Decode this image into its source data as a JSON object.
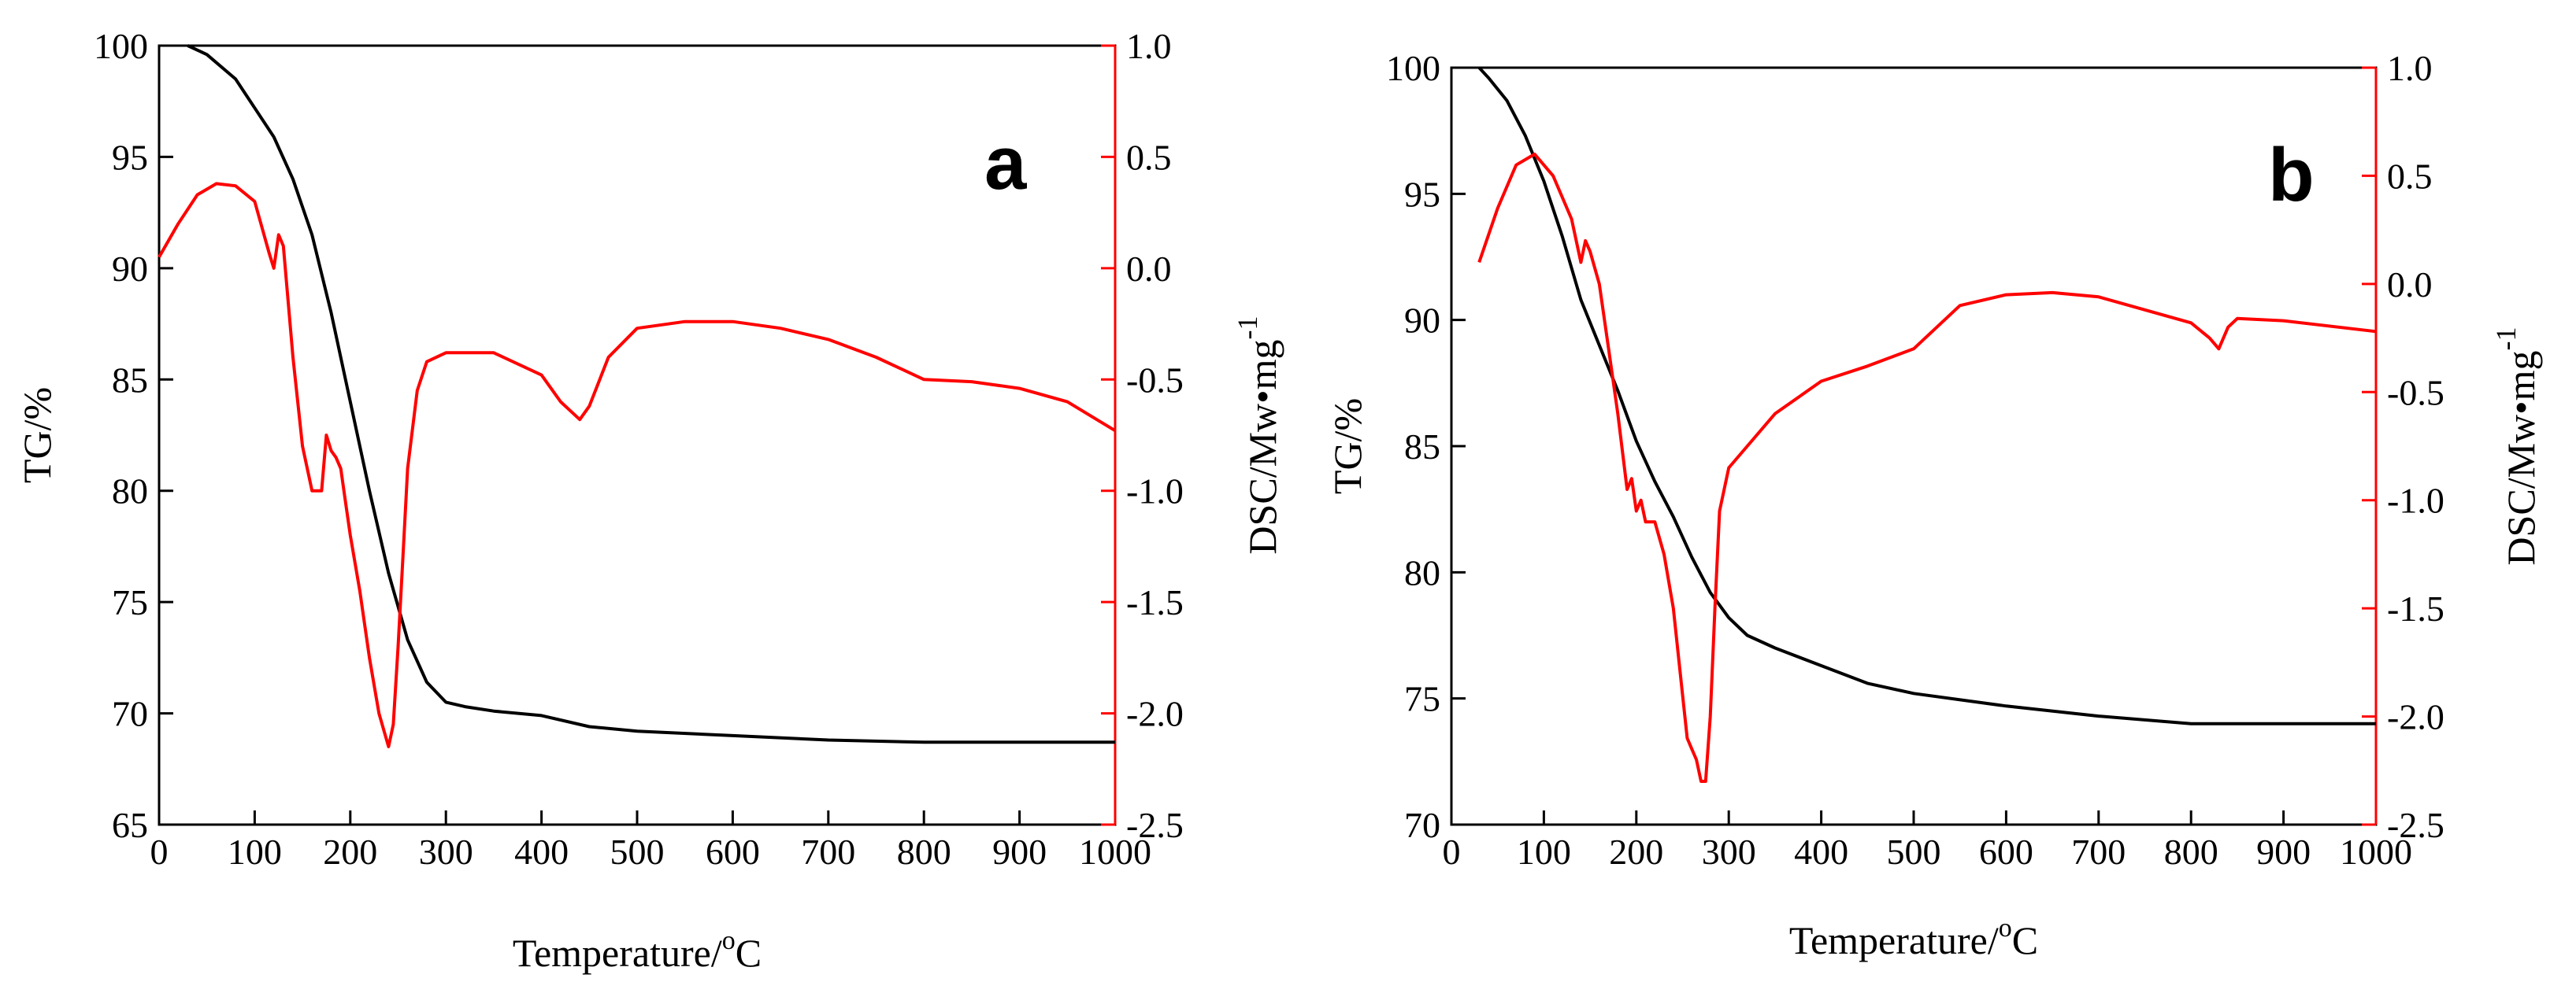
{
  "colors": {
    "tg": "#000000",
    "dsc": "#ff0000",
    "axis_left": "#000000",
    "axis_right": "#ff0000"
  },
  "chart_data": [
    {
      "type": "line",
      "panel": "a",
      "xlabel": "Temperature/",
      "xlabel_unit_sup": "o",
      "xlabel_unit": "C",
      "ylabel": "TG/%",
      "y2label": "DSC/Mw•mg",
      "y2label_sup": "-1",
      "xlim": [
        0,
        1000
      ],
      "ylim": [
        65,
        100
      ],
      "y2lim": [
        -2.5,
        1.0
      ],
      "xticks": [
        "0",
        "100",
        "200",
        "300",
        "400",
        "500",
        "600",
        "700",
        "800",
        "900",
        "1000"
      ],
      "yticks": [
        "65",
        "70",
        "75",
        "80",
        "85",
        "90",
        "95",
        "100"
      ],
      "y2ticks": [
        "-2.5",
        "-2.0",
        "-1.5",
        "-1.0",
        "-0.5",
        "0.0",
        "0.5",
        "1.0"
      ],
      "series": [
        {
          "name": "TG",
          "axis": "left",
          "x": [
            30,
            50,
            80,
            100,
            120,
            140,
            160,
            180,
            200,
            220,
            240,
            260,
            280,
            300,
            320,
            350,
            400,
            450,
            500,
            600,
            700,
            800,
            1000
          ],
          "values": [
            100,
            99.6,
            98.5,
            97.2,
            95.9,
            94,
            91.5,
            88,
            84,
            80,
            76.3,
            73.3,
            71.4,
            70.5,
            70.3,
            70.1,
            69.9,
            69.4,
            69.2,
            69.0,
            68.8,
            68.7,
            68.7
          ]
        },
        {
          "name": "DSC",
          "axis": "right",
          "x": [
            0,
            20,
            40,
            60,
            80,
            100,
            115,
            120,
            125,
            130,
            135,
            140,
            150,
            160,
            170,
            175,
            180,
            185,
            190,
            195,
            200,
            210,
            220,
            230,
            240,
            245,
            250,
            255,
            260,
            270,
            280,
            300,
            350,
            400,
            420,
            440,
            450,
            470,
            500,
            550,
            600,
            650,
            700,
            750,
            800,
            850,
            900,
            950,
            1000
          ],
          "values": [
            0.05,
            0.2,
            0.33,
            0.38,
            0.37,
            0.3,
            0.07,
            0.0,
            0.15,
            0.1,
            -0.15,
            -0.4,
            -0.8,
            -1.0,
            -1.0,
            -0.75,
            -0.82,
            -0.85,
            -0.9,
            -1.05,
            -1.2,
            -1.45,
            -1.75,
            -2.0,
            -2.15,
            -2.05,
            -1.7,
            -1.3,
            -0.9,
            -0.55,
            -0.42,
            -0.38,
            -0.38,
            -0.48,
            -0.6,
            -0.68,
            -0.62,
            -0.4,
            -0.27,
            -0.24,
            -0.24,
            -0.27,
            -0.32,
            -0.4,
            -0.5,
            -0.51,
            -0.54,
            -0.6,
            -0.73
          ]
        }
      ],
      "legend": "none"
    },
    {
      "type": "line",
      "panel": "b",
      "xlabel": "Temperature/",
      "xlabel_unit_sup": "o",
      "xlabel_unit": "C",
      "ylabel": "TG/%",
      "y2label": "DSC/Mw•mg",
      "y2label_sup": "-1",
      "xlim": [
        0,
        1000
      ],
      "ylim": [
        70,
        100
      ],
      "y2lim": [
        -2.5,
        1.0
      ],
      "xticks": [
        "0",
        "100",
        "200",
        "300",
        "400",
        "500",
        "600",
        "700",
        "800",
        "900",
        "1000"
      ],
      "yticks": [
        "70",
        "75",
        "80",
        "85",
        "90",
        "95",
        "100"
      ],
      "y2ticks": [
        "-2.5",
        "-2.0",
        "-1.5",
        "-1.0",
        "-0.5",
        "0.0",
        "0.5",
        "1.0"
      ],
      "series": [
        {
          "name": "TG",
          "axis": "left",
          "x": [
            30,
            40,
            60,
            80,
            100,
            120,
            140,
            160,
            180,
            200,
            220,
            240,
            260,
            280,
            300,
            320,
            350,
            400,
            450,
            500,
            600,
            700,
            800,
            1000
          ],
          "values": [
            100,
            99.6,
            98.7,
            97.3,
            95.5,
            93.3,
            90.8,
            89,
            87.2,
            85.2,
            83.6,
            82.2,
            80.6,
            79.2,
            78.2,
            77.5,
            77.0,
            76.3,
            75.6,
            75.2,
            74.7,
            74.3,
            74.0,
            74.0
          ]
        },
        {
          "name": "DSC",
          "axis": "right",
          "x": [
            30,
            50,
            70,
            90,
            110,
            130,
            140,
            145,
            150,
            160,
            170,
            180,
            190,
            195,
            200,
            205,
            210,
            220,
            230,
            240,
            250,
            255,
            260,
            265,
            270,
            275,
            280,
            285,
            290,
            300,
            320,
            350,
            400,
            450,
            500,
            550,
            600,
            650,
            700,
            750,
            800,
            820,
            830,
            840,
            850,
            900,
            1000
          ],
          "values": [
            0.1,
            0.35,
            0.55,
            0.6,
            0.5,
            0.3,
            0.1,
            0.2,
            0.15,
            0.0,
            -0.3,
            -0.6,
            -0.95,
            -0.9,
            -1.05,
            -1.0,
            -1.1,
            -1.1,
            -1.25,
            -1.5,
            -1.9,
            -2.1,
            -2.15,
            -2.2,
            -2.3,
            -2.3,
            -2.0,
            -1.5,
            -1.05,
            -0.85,
            -0.75,
            -0.6,
            -0.45,
            -0.38,
            -0.3,
            -0.1,
            -0.05,
            -0.04,
            -0.06,
            -0.12,
            -0.18,
            -0.25,
            -0.3,
            -0.2,
            -0.16,
            -0.17,
            -0.22
          ]
        }
      ],
      "legend": "none"
    }
  ]
}
